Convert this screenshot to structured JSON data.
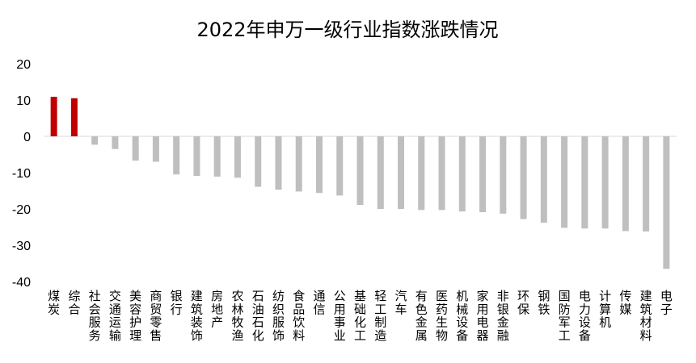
{
  "chart_data": {
    "type": "bar",
    "title": "2022年申万一级行业指数涨跌情况",
    "xlabel": "",
    "ylabel": "",
    "ylim": [
      -40,
      20
    ],
    "yticks": [
      20,
      10,
      0,
      -10,
      -20,
      -30,
      -40
    ],
    "grid": false,
    "legend": "none",
    "categories": [
      "煤炭",
      "综合",
      "社会服务",
      "交通运输",
      "美容护理",
      "商贸零售",
      "银行",
      "建筑装饰",
      "房地产",
      "农林牧渔",
      "石油石化",
      "纺织服饰",
      "食品饮料",
      "通信",
      "公用事业",
      "基础化工",
      "轻工制造",
      "汽车",
      "有色金属",
      "医药生物",
      "机械设备",
      "家用电器",
      "非银金融",
      "环保",
      "钢铁",
      "国防军工",
      "电力设备",
      "计算机",
      "传媒",
      "建筑材料",
      "电子"
    ],
    "values": [
      10.9,
      10.5,
      -2.3,
      -3.5,
      -6.7,
      -7.0,
      -10.5,
      -10.9,
      -11.1,
      -11.4,
      -13.9,
      -14.7,
      -15.2,
      -15.6,
      -16.3,
      -18.9,
      -20.0,
      -20.0,
      -20.3,
      -20.3,
      -20.7,
      -20.9,
      -21.3,
      -22.8,
      -23.8,
      -25.2,
      -25.4,
      -25.4,
      -26.1,
      -26.2,
      -36.5
    ]
  },
  "colors": {
    "positive": "#C00000",
    "negative": "#BFBFBF",
    "axis": "#D9D9D9"
  }
}
